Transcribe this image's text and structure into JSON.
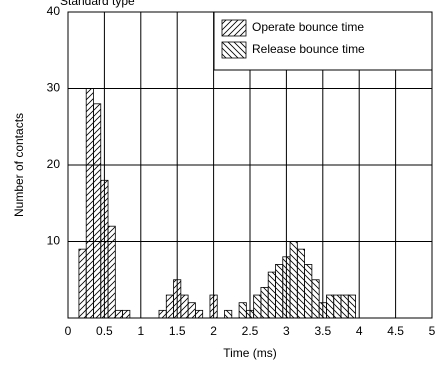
{
  "chart_data": {
    "type": "histogram",
    "title": "Standard type",
    "xlabel": "Time (ms)",
    "ylabel": "Number of contacts",
    "xlim": [
      0,
      5
    ],
    "ylim": [
      0,
      40
    ],
    "xticks": [
      0,
      0.5,
      1,
      1.5,
      2,
      2.5,
      3,
      3.5,
      4,
      4.5,
      5
    ],
    "yticks": [
      10,
      20,
      30,
      40
    ],
    "grid": true,
    "legend": "upper right",
    "series": [
      {
        "name": "Operate bounce time",
        "color": "#000000",
        "hatch": "/",
        "bins": [
          0.15,
          0.25,
          0.35,
          0.45,
          0.55,
          0.65,
          0.75,
          0.85,
          0.95,
          1.05,
          1.15,
          1.25,
          1.35,
          1.45,
          1.55,
          1.65,
          1.75,
          1.85,
          1.95,
          2.05,
          2.15
        ],
        "values": [
          9,
          30,
          28,
          18,
          12,
          1,
          1,
          0,
          0,
          0,
          0,
          1,
          3,
          5,
          3,
          2,
          1,
          0,
          3,
          0
        ]
      },
      {
        "name": "Release bounce time",
        "color": "#000000",
        "hatch": "\\",
        "bins": [
          2.15,
          2.25,
          2.35,
          2.45,
          2.55,
          2.65,
          2.75,
          2.85,
          2.95,
          3.05,
          3.15,
          3.25,
          3.35,
          3.45,
          3.55,
          3.65,
          3.75,
          3.85,
          3.95
        ],
        "values": [
          1,
          0,
          2,
          1,
          3,
          4,
          6,
          7,
          8,
          10,
          9,
          7,
          5,
          2,
          3,
          3,
          3,
          3
        ]
      }
    ]
  }
}
